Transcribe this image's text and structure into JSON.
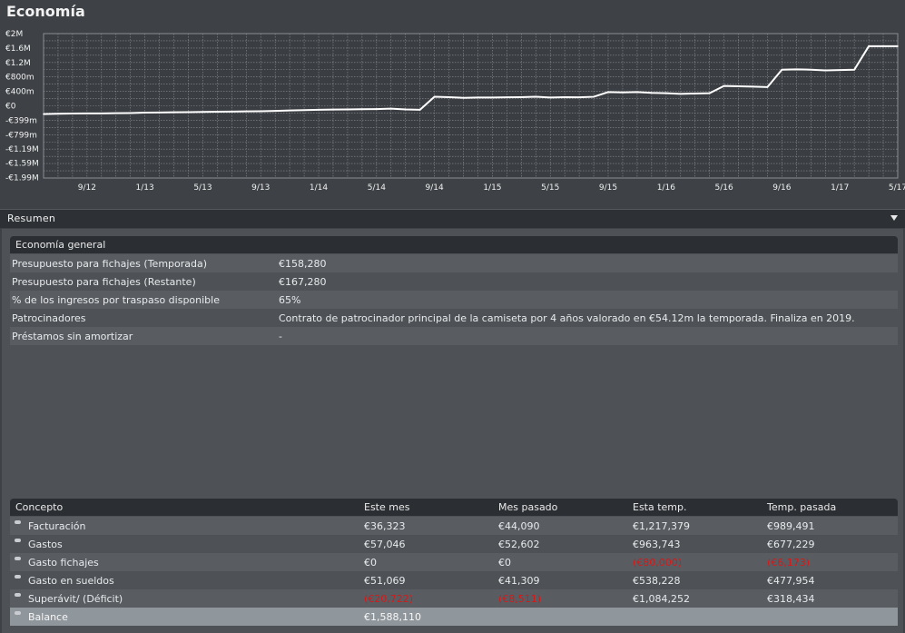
{
  "page": {
    "title": "Economía"
  },
  "chart_data": {
    "type": "line",
    "title": "",
    "xlabel": "",
    "ylabel": "",
    "y_tick_labels": [
      "€2M",
      "€1.6M",
      "€1.2M",
      "€800m",
      "€400m",
      "€0",
      "-€399m",
      "-€799m",
      "-€1.19M",
      "-€1.59M",
      "-€1.99M"
    ],
    "y_ticks": [
      2000000,
      1600000,
      1200000,
      800000,
      400000,
      0,
      -399000,
      -799000,
      -1190000,
      -1590000,
      -1990000
    ],
    "ylim": [
      -2000000,
      2000000
    ],
    "x_tick_labels": [
      "9/12",
      "1/13",
      "5/13",
      "9/13",
      "1/14",
      "5/14",
      "9/14",
      "1/15",
      "5/15",
      "9/15",
      "1/16",
      "5/16",
      "9/16",
      "1/17",
      "5/17"
    ],
    "x_tick_months": [
      8,
      12,
      16,
      20,
      24,
      28,
      32,
      36,
      40,
      44,
      48,
      52,
      56,
      60,
      64
    ],
    "xlim_months": [
      5,
      64
    ],
    "grid": true,
    "series": [
      {
        "name": "",
        "color": "#ffffff",
        "x_months": [
          5,
          6,
          7,
          8,
          9,
          10,
          11,
          12,
          13,
          14,
          15,
          16,
          17,
          18,
          19,
          20,
          21,
          22,
          23,
          24,
          25,
          26,
          27,
          28,
          29,
          30,
          31,
          32,
          33,
          34,
          35,
          36,
          37,
          38,
          39,
          40,
          41,
          42,
          43,
          44,
          45,
          46,
          47,
          48,
          49,
          50,
          51,
          52,
          53,
          54,
          55,
          56,
          57,
          58,
          59,
          60,
          61,
          62,
          63,
          64
        ],
        "values": [
          -230000,
          -220000,
          -215000,
          -210000,
          -210000,
          -205000,
          -200000,
          -190000,
          -185000,
          -180000,
          -175000,
          -170000,
          -165000,
          -160000,
          -155000,
          -150000,
          -140000,
          -130000,
          -120000,
          -110000,
          -105000,
          -100000,
          -95000,
          -90000,
          -80000,
          -100000,
          -110000,
          250000,
          240000,
          220000,
          230000,
          230000,
          235000,
          240000,
          250000,
          230000,
          240000,
          235000,
          250000,
          380000,
          370000,
          380000,
          360000,
          350000,
          330000,
          340000,
          350000,
          550000,
          540000,
          530000,
          520000,
          1000000,
          1010000,
          1000000,
          980000,
          990000,
          1000000,
          1650000,
          1650000,
          1650000
        ]
      }
    ]
  },
  "resumen": {
    "label": "Resumen",
    "icon": "chevron-down-icon"
  },
  "economia_general": {
    "header": "Economía general",
    "rows": [
      {
        "label": "Presupuesto para fichajes (Temporada)",
        "value": "€158,280"
      },
      {
        "label": "Presupuesto para fichajes (Restante)",
        "value": "€167,280"
      },
      {
        "label": "% de los ingresos por traspaso disponible",
        "value": "65%"
      },
      {
        "label": "Patrocinadores",
        "value": "Contrato de patrocinador principal de la camiseta por 4 años valorado en €54.12m la temporada. Finaliza en 2019."
      },
      {
        "label": "Préstamos sin amortizar",
        "value": "-"
      }
    ]
  },
  "finance_table": {
    "columns": [
      "Concepto",
      "Este mes",
      "Mes pasado",
      "Esta temp.",
      "Temp. pasada"
    ],
    "rows": [
      {
        "concept": "Facturación",
        "este_mes": "€36,323",
        "mes_pasado": "€44,090",
        "esta_temp": "€1,217,379",
        "temp_pasada": "€989,491"
      },
      {
        "concept": "Gastos",
        "este_mes": "€57,046",
        "mes_pasado": "€52,602",
        "esta_temp": "€963,743",
        "temp_pasada": "€677,229"
      },
      {
        "concept": "Gasto fichajes",
        "este_mes": "€0",
        "mes_pasado": "€0",
        "esta_temp": "(€80,000)",
        "temp_pasada": "(€6,173)"
      },
      {
        "concept": "Gasto en sueldos",
        "este_mes": "€51,069",
        "mes_pasado": "€41,309",
        "esta_temp": "€538,228",
        "temp_pasada": "€477,954"
      },
      {
        "concept": "Superávit/ (Déficit)",
        "este_mes": "(€20,722)",
        "mes_pasado": "(€8,511)",
        "esta_temp": "€1,084,252",
        "temp_pasada": "€318,434"
      }
    ],
    "balance": {
      "concept": "Balance",
      "value": "€1,588,110"
    }
  },
  "colors": {
    "negative": "#d21a1a",
    "background": "#3e4246",
    "panel": "#4e5256"
  }
}
